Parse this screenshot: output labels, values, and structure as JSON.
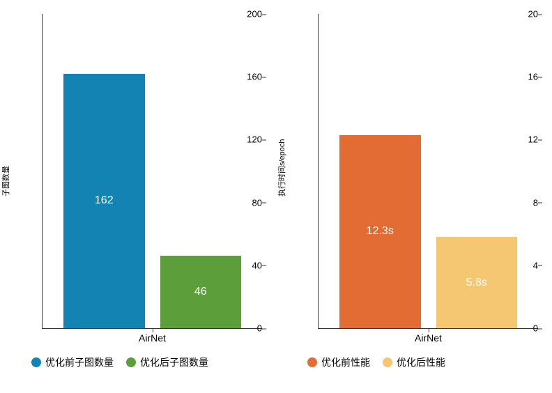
{
  "left_chart": {
    "type": "bar",
    "category": "AirNet",
    "ylabel": "子图数量",
    "ylim": [
      0,
      200
    ],
    "ytick_step": 40,
    "yticks": [
      "0",
      "40",
      "80",
      "120",
      "160",
      "200"
    ],
    "bars": [
      {
        "value": 162,
        "label": "162",
        "color": "#1283b2",
        "legend": "优化前子图数量",
        "height_pct": 81
      },
      {
        "value": 46,
        "label": "46",
        "color": "#5c9e3a",
        "legend": "优化后子图数量",
        "height_pct": 23
      }
    ],
    "label_fontsize": 16,
    "tick_fontsize": 13,
    "axis_fontsize": 11
  },
  "right_chart": {
    "type": "bar",
    "category": "AirNet",
    "ylabel": "执行时间s/epoch",
    "ylim": [
      0,
      20
    ],
    "ytick_step": 4,
    "yticks": [
      "0",
      "4",
      "8",
      "12",
      "16",
      "20"
    ],
    "bars": [
      {
        "value": 12.3,
        "label": "12.3s",
        "color": "#e36b34",
        "legend": "优化前性能",
        "height_pct": 61.5
      },
      {
        "value": 5.8,
        "label": "5.8s",
        "color": "#f5c772",
        "legend": "优化后性能",
        "height_pct": 29
      }
    ],
    "label_fontsize": 16,
    "tick_fontsize": 13,
    "axis_fontsize": 11
  },
  "background_color": "#ffffff",
  "axis_color": "#333333"
}
